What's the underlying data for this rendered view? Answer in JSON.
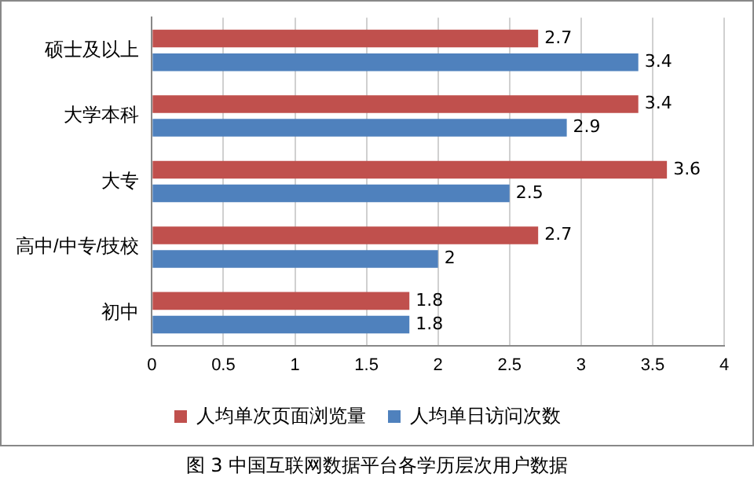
{
  "chart_data": {
    "type": "bar",
    "orientation": "horizontal",
    "categories": [
      "硕士及以上",
      "大学本科",
      "大专",
      "高中/中专/技校",
      "初中"
    ],
    "series": [
      {
        "name": "人均单次页面浏览量",
        "color": "#c0504d",
        "values": [
          2.7,
          3.4,
          3.6,
          2.7,
          1.8
        ]
      },
      {
        "name": "人均单日访问次数",
        "color": "#4f81bd",
        "values": [
          3.4,
          2.9,
          2.5,
          2,
          1.8
        ]
      }
    ],
    "xlim": [
      0,
      4
    ],
    "xticks": [
      0,
      0.5,
      1,
      1.5,
      2,
      2.5,
      3,
      3.5,
      4
    ],
    "grid": "x",
    "legend": "bottom",
    "data_labels": true,
    "annotations": [
      "图 3 中国互联网数据平台各学历层次用户数据"
    ]
  }
}
